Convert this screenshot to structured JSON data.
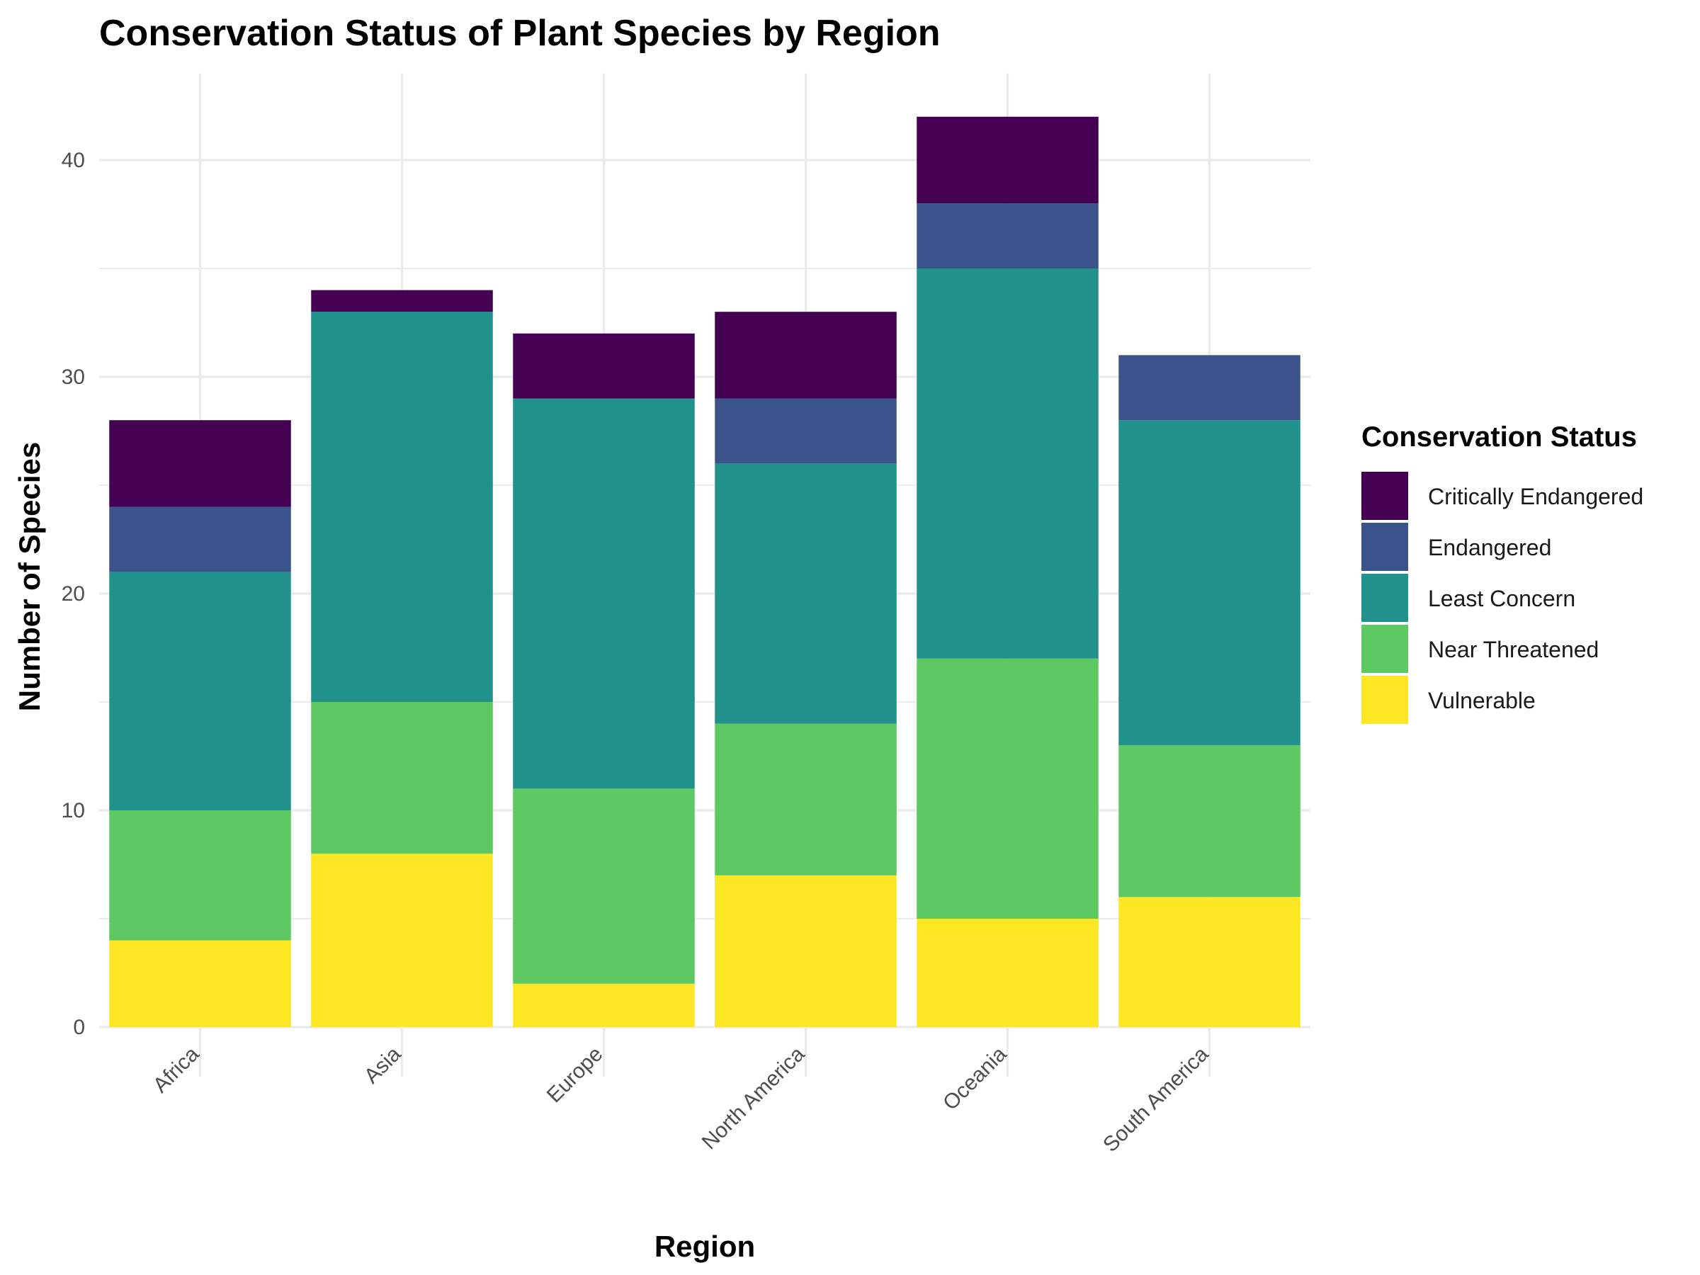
{
  "chart_data": {
    "type": "bar",
    "stacked": true,
    "title": "Conservation Status of Plant Species by Region",
    "xlabel": "Region",
    "ylabel": "Number of Species",
    "categories": [
      "Africa",
      "Asia",
      "Europe",
      "North America",
      "Oceania",
      "South America"
    ],
    "ylim": [
      0,
      44
    ],
    "yticks": [
      0,
      10,
      20,
      30,
      40
    ],
    "grid": true,
    "legend_position": "right",
    "legend_title": "Conservation Status",
    "series": [
      {
        "name": "Vulnerable",
        "color": "#fde725",
        "values": [
          4,
          8,
          2,
          7,
          5,
          6
        ]
      },
      {
        "name": "Near Threatened",
        "color": "#5ec962",
        "values": [
          6,
          7,
          9,
          7,
          12,
          7
        ]
      },
      {
        "name": "Least Concern",
        "color": "#21918c",
        "values": [
          11,
          18,
          18,
          12,
          18,
          15
        ]
      },
      {
        "name": "Endangered",
        "color": "#3b528b",
        "values": [
          3,
          0,
          0,
          3,
          3,
          3
        ]
      },
      {
        "name": "Critically Endangered",
        "color": "#440154",
        "values": [
          4,
          1,
          3,
          4,
          4,
          0
        ]
      }
    ],
    "legend_order": [
      "Critically Endangered",
      "Endangered",
      "Least Concern",
      "Near Threatened",
      "Vulnerable"
    ]
  }
}
